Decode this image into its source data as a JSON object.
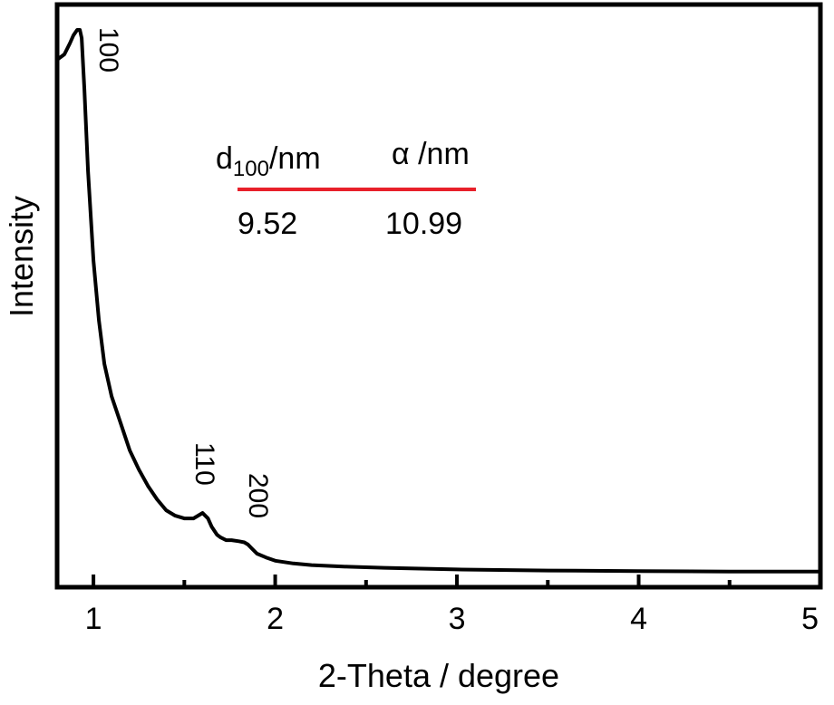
{
  "chart_data": {
    "type": "line",
    "xlabel": "2-Theta / degree",
    "ylabel": "Intensity",
    "xlim": [
      0.8,
      5.0
    ],
    "ylim": [
      0,
      1.0
    ],
    "x_ticks": [
      1,
      2,
      3,
      4,
      5
    ],
    "x_tick_labels": [
      "1",
      "2",
      "3",
      "4",
      "5"
    ],
    "y_tick_labels_shown": false,
    "grid": false,
    "series": [
      {
        "color": "#000000",
        "x": [
          0.8,
          0.84,
          0.87,
          0.89,
          0.91,
          0.925,
          0.935,
          0.95,
          0.97,
          1.0,
          1.03,
          1.06,
          1.1,
          1.15,
          1.2,
          1.25,
          1.3,
          1.35,
          1.4,
          1.45,
          1.5,
          1.55,
          1.6,
          1.63,
          1.65,
          1.68,
          1.7,
          1.73,
          1.76,
          1.8,
          1.83,
          1.85,
          1.87,
          1.9,
          1.95,
          2.0,
          2.1,
          2.2,
          2.4,
          2.6,
          3.0,
          3.5,
          4.0,
          4.5,
          5.0
        ],
        "y": [
          0.945,
          0.955,
          0.975,
          0.99,
          1.0,
          1.0,
          0.985,
          0.89,
          0.74,
          0.575,
          0.465,
          0.385,
          0.325,
          0.275,
          0.225,
          0.19,
          0.16,
          0.135,
          0.115,
          0.105,
          0.1,
          0.1,
          0.11,
          0.1,
          0.085,
          0.07,
          0.065,
          0.06,
          0.06,
          0.058,
          0.056,
          0.052,
          0.045,
          0.035,
          0.028,
          0.022,
          0.017,
          0.014,
          0.011,
          0.009,
          0.006,
          0.004,
          0.003,
          0.002,
          0.002
        ]
      }
    ],
    "annotations": [
      {
        "text": "100",
        "x": 0.95
      },
      {
        "text": "110",
        "x": 1.62
      },
      {
        "text": "200",
        "x": 1.91
      }
    ],
    "inset_table": {
      "col1_header": {
        "main": "d",
        "sub": "100",
        "unit": "/nm"
      },
      "col2_header": "α /nm",
      "divider_color": "#e8202a",
      "values": [
        "9.52",
        "10.99"
      ]
    }
  }
}
